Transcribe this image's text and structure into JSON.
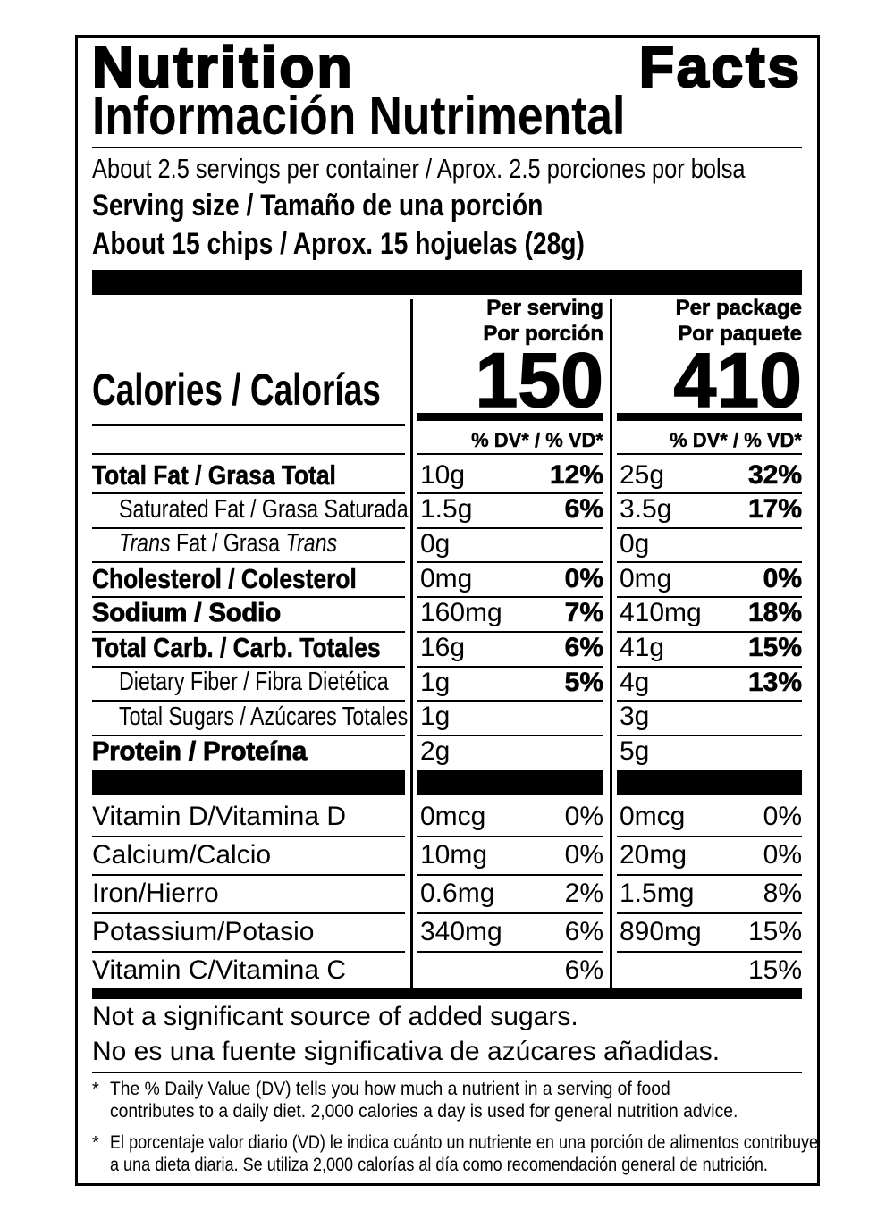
{
  "title": "Nutrition Facts",
  "subtitle": "Información Nutrimental",
  "servings": "About 2.5 servings per container / Aprox. 2.5 porciones por bolsa",
  "serving_size_label": "Serving size / Tamaño de una porción",
  "serving_size": "About 15 chips / Aprox. 15 hojuelas (28g)",
  "calories_label": "Calories / Calorías",
  "columns": [
    {
      "line1": "Per serving",
      "line2": "Por porción",
      "calories": "150",
      "dv_header": "% DV* / % VD*"
    },
    {
      "line1": "Per package",
      "line2": "Por paquete",
      "calories": "410",
      "dv_header": "% DV* / % VD*"
    }
  ],
  "nutrients": [
    {
      "label": "Total Fat / Grasa Total",
      "style": "bold",
      "amounts": [
        "10g",
        "25g"
      ],
      "dv": [
        "12%",
        "32%"
      ]
    },
    {
      "label": "Saturated Fat / Grasa Saturada",
      "style": "indent",
      "amounts": [
        "1.5g",
        "3.5g"
      ],
      "dv": [
        "6%",
        "17%"
      ]
    },
    {
      "label": [
        {
          "text": "Trans",
          "italic": true
        },
        {
          "text": " Fat / Grasa ",
          "italic": false
        },
        {
          "text": "Trans",
          "italic": true
        }
      ],
      "style": "indent",
      "amounts": [
        "0g",
        "0g"
      ]
    },
    {
      "label": "Cholesterol / Colesterol",
      "style": "bold",
      "amounts": [
        "0mg",
        "0mg"
      ],
      "dv": [
        "0%",
        "0%"
      ]
    },
    {
      "label": "Sodium / Sodio",
      "style": "heavy",
      "amounts": [
        "160mg",
        "410mg"
      ],
      "dv": [
        "7%",
        "18%"
      ]
    },
    {
      "label": "Total Carb. / Carb. Totales",
      "style": "bold",
      "amounts": [
        "16g",
        "41g"
      ],
      "dv": [
        "6%",
        "15%"
      ]
    },
    {
      "label": "Dietary Fiber / Fibra Dietética",
      "style": "indent",
      "amounts": [
        "1g",
        "4g"
      ],
      "dv": [
        "5%",
        "13%"
      ]
    },
    {
      "label": "Total Sugars / Azúcares Totales",
      "style": "indent",
      "amounts": [
        "1g",
        "3g"
      ]
    },
    {
      "label": "Protein / Proteína",
      "style": "heavy",
      "amounts": [
        "2g",
        "5g"
      ]
    }
  ],
  "vitamins": [
    {
      "label": "Vitamin D/Vitamina D",
      "amounts": [
        "0mcg",
        "0mcg"
      ],
      "dv": [
        "0%",
        "0%"
      ]
    },
    {
      "label": "Calcium/Calcio",
      "amounts": [
        "10mg",
        "20mg"
      ],
      "dv": [
        "0%",
        "0%"
      ]
    },
    {
      "label": "Iron/Hierro",
      "amounts": [
        "0.6mg",
        "1.5mg"
      ],
      "dv": [
        "2%",
        "8%"
      ]
    },
    {
      "label": "Potassium/Potasio",
      "amounts": [
        "340mg",
        "890mg"
      ],
      "dv": [
        "6%",
        "15%"
      ]
    },
    {
      "label": "Vitamin C/Vitamina C",
      "dv": [
        "6%",
        "15%"
      ]
    }
  ],
  "notes": [
    "Not a significant source of added sugars.",
    "No es una fuente significativa de azúcares añadidas."
  ],
  "footnotes": [
    {
      "marker": "*",
      "lines": [
        "The % Daily Value (DV) tells you how much a nutrient in a serving of food",
        "contributes to a daily diet. 2,000 calories a day is used for general nutrition advice."
      ]
    },
    {
      "marker": "*",
      "lines": [
        "El porcentaje valor diario (VD) le indica cuánto un nutriente en una porción de alimentos contribuye",
        "a una dieta diaria. Se utiliza 2,000 calorías al día como recomendación general de nutrición."
      ]
    }
  ]
}
